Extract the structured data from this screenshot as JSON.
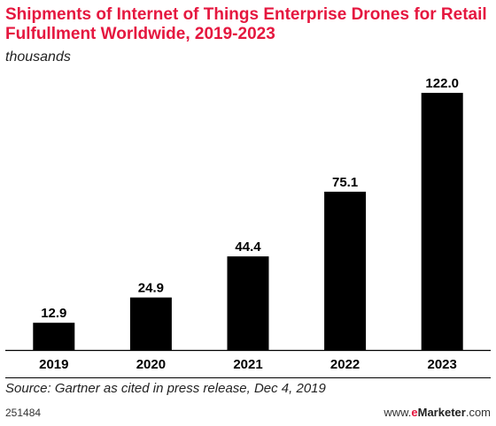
{
  "chart_data": {
    "type": "bar",
    "title": "Shipments of Internet of Things Enterprise Drones for Retail Fulfullment Worldwide, 2019-2023",
    "subtitle": "thousands",
    "categories": [
      "2019",
      "2020",
      "2021",
      "2022",
      "2023"
    ],
    "values": [
      12.9,
      24.9,
      44.4,
      75.1,
      122.0
    ],
    "value_labels": [
      "12.9",
      "24.9",
      "44.4",
      "75.1",
      "122.0"
    ],
    "ylim": [
      0,
      130
    ],
    "grid": false,
    "bar_color": "#000000"
  },
  "footer": {
    "source": "Source: Gartner as cited in press release, Dec 4, 2019",
    "chart_id": "251484",
    "brand_prefix": "www.",
    "brand_e": "e",
    "brand_marketer": "Marketer",
    "brand_suffix": ".com"
  },
  "colors": {
    "title": "#e5173f",
    "accent": "#e5173f"
  }
}
